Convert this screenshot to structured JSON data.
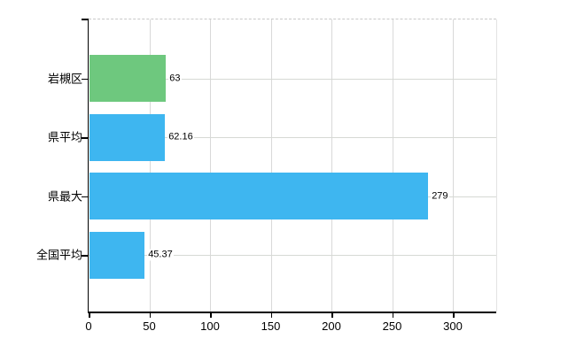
{
  "chart_data": {
    "type": "bar",
    "orientation": "horizontal",
    "title": "",
    "categories": [
      "岩槻区",
      "県平均",
      "県最大",
      "全国平均"
    ],
    "values": [
      63,
      62.16,
      279,
      45.37
    ],
    "value_labels": [
      "63",
      "62.16",
      "279",
      "45.37"
    ],
    "bar_colors": [
      "#6ec87e",
      "#3eb6f0",
      "#3eb6f0",
      "#3eb6f0"
    ],
    "x_tick_labels": [
      "0",
      "50",
      "100",
      "150",
      "200",
      "250",
      "300"
    ],
    "x_tick_values": [
      0,
      50,
      100,
      150,
      200,
      250,
      300
    ],
    "xlim": [
      0,
      335.8
    ],
    "grid": true,
    "legend": false,
    "colors": {
      "bar_highlight": "#6ec87e",
      "bar_default": "#3eb6f0",
      "axis": "#000000",
      "gridline": "#d9d9d9",
      "background": "#ffffff",
      "text": "#000000"
    }
  }
}
